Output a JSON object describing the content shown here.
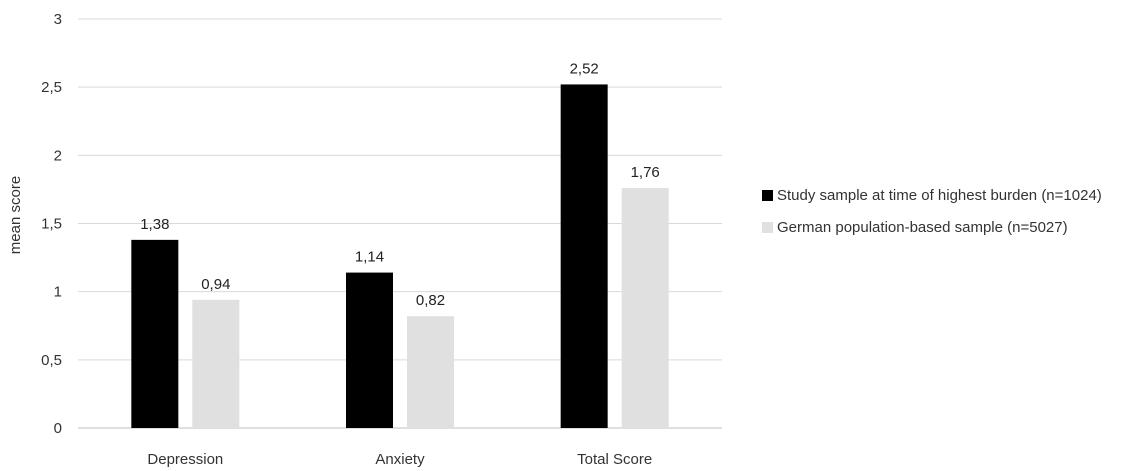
{
  "chart_data": {
    "type": "bar",
    "categories": [
      "Depression",
      "Anxiety",
      "Total Score"
    ],
    "series": [
      {
        "name": "Study sample at time of highest burden (n=1024)",
        "values": [
          1.38,
          1.14,
          2.52
        ],
        "labels": [
          "1,38",
          "1,14",
          "2,52"
        ],
        "color": "#000000"
      },
      {
        "name": "German population-based sample (n=5027)",
        "values": [
          0.94,
          0.82,
          1.76
        ],
        "labels": [
          "0,94",
          "0,82",
          "1,76"
        ],
        "color": "#e0e0e0"
      }
    ],
    "ylabel": "mean score",
    "ylim": [
      0,
      3
    ],
    "yticks": [
      0,
      0.5,
      1,
      1.5,
      2,
      2.5,
      3
    ],
    "ytick_labels": [
      "0",
      "0,5",
      "1",
      "1,5",
      "2",
      "2,5",
      "3"
    ],
    "grid": true,
    "legend_position": "right"
  },
  "legend": {
    "items": [
      {
        "label": "Study sample at time of highest burden (n=1024)",
        "color": "#000000"
      },
      {
        "label": "German population-based sample (n=5027)",
        "color": "#e0e0e0"
      }
    ]
  }
}
